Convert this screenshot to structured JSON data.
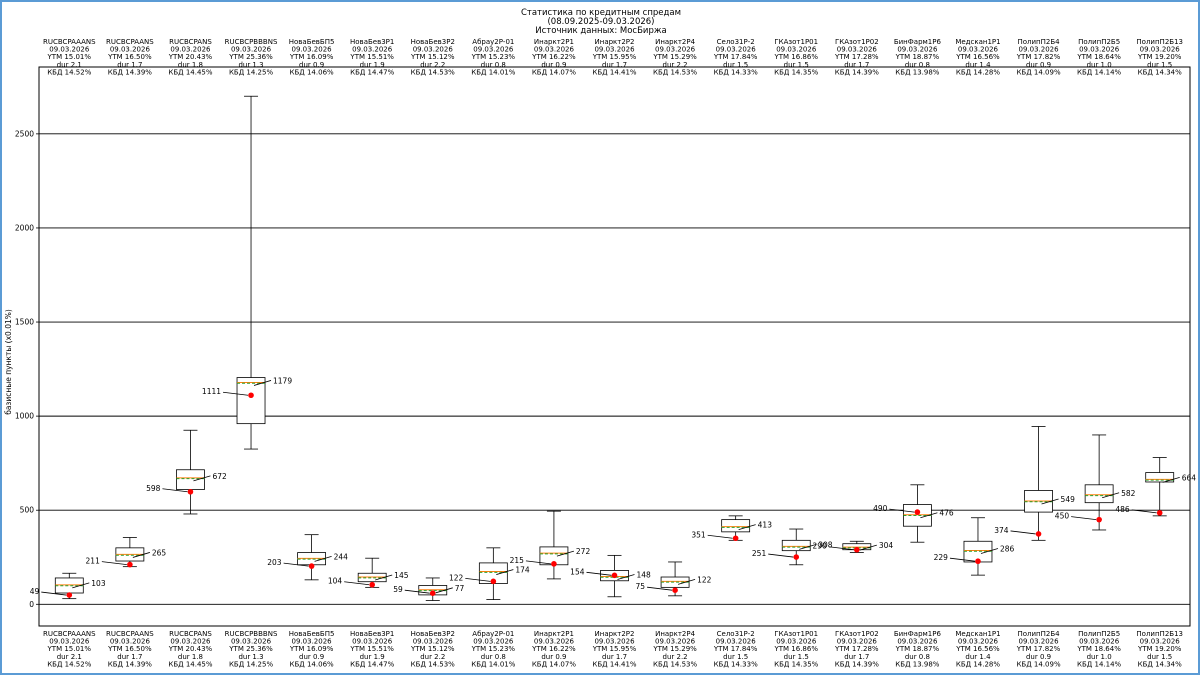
{
  "chart_data": {
    "type": "box",
    "title_lines": [
      "Статистика по кредитным спредам",
      "(08.09.2025-09.03.2026)",
      "Источник данных: МосБиржа"
    ],
    "ylabel": "базисные пункты (x0.01%)",
    "ylim": [
      -110,
      2850
    ],
    "yticks": [
      0,
      500,
      1000,
      1500,
      2000,
      2500
    ],
    "grid": "horizontal",
    "series": [
      {
        "name": "RUCBCPAAANS",
        "date": "09.03.2026",
        "ytm": "YTM 15.01%",
        "dur": "dur 2.1",
        "kbd": "КБД 14.52%",
        "whisker_low": 30,
        "q1": 60,
        "median": 103,
        "q3": 140,
        "whisker_high": 165,
        "mean": 103,
        "current": 49,
        "current_label": "49",
        "mean_label": "103"
      },
      {
        "name": "RUCBCPAANS",
        "date": "09.03.2026",
        "ytm": "YTM 16.50%",
        "dur": "dur 1.7",
        "kbd": "КБД 14.39%",
        "whisker_low": 200,
        "q1": 230,
        "median": 265,
        "q3": 300,
        "whisker_high": 355,
        "mean": 265,
        "current": 211,
        "current_label": "211",
        "mean_label": "265"
      },
      {
        "name": "RUCBCPANS",
        "date": "09.03.2026",
        "ytm": "YTM 20.43%",
        "dur": "dur 1.8",
        "kbd": "КБД 14.45%",
        "whisker_low": 480,
        "q1": 610,
        "median": 672,
        "q3": 715,
        "whisker_high": 925,
        "mean": 672,
        "current": 598,
        "current_label": "598",
        "mean_label": "672"
      },
      {
        "name": "RUCBCPBBBNS",
        "date": "09.03.2026",
        "ytm": "YTM 25.36%",
        "dur": "dur 1.3",
        "kbd": "КБД 14.25%",
        "whisker_low": 825,
        "q1": 960,
        "median": 1179,
        "q3": 1205,
        "whisker_high": 2700,
        "mean": 1179,
        "current": 1111,
        "current_label": "1111",
        "mean_label": "1179"
      },
      {
        "name": "НоваБевБП5",
        "date": "09.03.2026",
        "ytm": "YTM 16.09%",
        "dur": "dur 0.9",
        "kbd": "КБД 14.06%",
        "whisker_low": 130,
        "q1": 210,
        "median": 244,
        "q3": 275,
        "whisker_high": 370,
        "mean": 244,
        "current": 203,
        "current_label": "203",
        "mean_label": "244"
      },
      {
        "name": "НоваБев3Р1",
        "date": "09.03.2026",
        "ytm": "YTM 15.51%",
        "dur": "dur 1.9",
        "kbd": "КБД 14.47%",
        "whisker_low": 90,
        "q1": 120,
        "median": 145,
        "q3": 165,
        "whisker_high": 245,
        "mean": 145,
        "current": 104,
        "current_label": "104",
        "mean_label": "145"
      },
      {
        "name": "НоваБев3Р2",
        "date": "09.03.2026",
        "ytm": "YTM 15.12%",
        "dur": "dur 2.2",
        "kbd": "КБД 14.53%",
        "whisker_low": 20,
        "q1": 50,
        "median": 77,
        "q3": 100,
        "whisker_high": 140,
        "mean": 77,
        "current": 59,
        "current_label": "59",
        "mean_label": "77"
      },
      {
        "name": "Абрау2Р-01",
        "date": "09.03.2026",
        "ytm": "YTM 15.23%",
        "dur": "dur 0.8",
        "kbd": "КБД 14.01%",
        "whisker_low": 25,
        "q1": 110,
        "median": 174,
        "q3": 220,
        "whisker_high": 300,
        "mean": 174,
        "current": 122,
        "current_label": "122",
        "mean_label": "174"
      },
      {
        "name": "Инаркт2Р1",
        "date": "09.03.2026",
        "ytm": "YTM 16.22%",
        "dur": "dur 0.9",
        "kbd": "КБД 14.07%",
        "whisker_low": 135,
        "q1": 210,
        "median": 272,
        "q3": 305,
        "whisker_high": 495,
        "mean": 272,
        "current": 215,
        "current_label": "215",
        "mean_label": "272"
      },
      {
        "name": "Инаркт2Р2",
        "date": "09.03.2026",
        "ytm": "YTM 15.95%",
        "dur": "dur 1.7",
        "kbd": "КБД 14.41%",
        "whisker_low": 40,
        "q1": 125,
        "median": 148,
        "q3": 180,
        "whisker_high": 260,
        "mean": 148,
        "current": 154,
        "current_label": "154",
        "mean_label": "148"
      },
      {
        "name": "Инаркт2Р4",
        "date": "09.03.2026",
        "ytm": "YTM 15.29%",
        "dur": "dur 2.2",
        "kbd": "КБД 14.53%",
        "whisker_low": 45,
        "q1": 90,
        "median": 122,
        "q3": 145,
        "whisker_high": 225,
        "mean": 122,
        "current": 75,
        "current_label": "75",
        "mean_label": "122"
      },
      {
        "name": "Село31Р-2",
        "date": "09.03.2026",
        "ytm": "YTM 17.84%",
        "dur": "dur 1.5",
        "kbd": "КБД 14.33%",
        "whisker_low": 340,
        "q1": 385,
        "median": 413,
        "q3": 450,
        "whisker_high": 470,
        "mean": 413,
        "current": 351,
        "current_label": "351",
        "mean_label": "413"
      },
      {
        "name": "ГКАзот1Р01",
        "date": "09.03.2026",
        "ytm": "YTM 16.86%",
        "dur": "dur 1.5",
        "kbd": "КБД 14.35%",
        "whisker_low": 210,
        "q1": 285,
        "median": 308,
        "q3": 340,
        "whisker_high": 400,
        "mean": 308,
        "current": 251,
        "current_label": "251",
        "mean_label": "308"
      },
      {
        "name": "ГКАзот1Р02",
        "date": "09.03.2026",
        "ytm": "YTM 17.28%",
        "dur": "dur 1.7",
        "kbd": "КБД 14.39%",
        "whisker_low": 275,
        "q1": 290,
        "median": 304,
        "q3": 322,
        "whisker_high": 335,
        "mean": 304,
        "current": 290,
        "current_label": "290",
        "mean_label": "304"
      },
      {
        "name": "БинФарм1Р6",
        "date": "09.03.2026",
        "ytm": "YTM 18.87%",
        "dur": "dur 0.8",
        "kbd": "КБД 13.98%",
        "whisker_low": 330,
        "q1": 415,
        "median": 476,
        "q3": 530,
        "whisker_high": 635,
        "mean": 476,
        "current": 490,
        "current_label": "490",
        "mean_label": "476"
      },
      {
        "name": "Медскан1Р1",
        "date": "09.03.2026",
        "ytm": "YTM 16.56%",
        "dur": "dur 1.4",
        "kbd": "КБД 14.28%",
        "whisker_low": 155,
        "q1": 225,
        "median": 286,
        "q3": 335,
        "whisker_high": 460,
        "mean": 286,
        "current": 229,
        "current_label": "229",
        "mean_label": "286"
      },
      {
        "name": "ПолипП2Б4",
        "date": "09.03.2026",
        "ytm": "YTM 17.82%",
        "dur": "dur 0.9",
        "kbd": "КБД 14.09%",
        "whisker_low": 340,
        "q1": 490,
        "median": 549,
        "q3": 605,
        "whisker_high": 945,
        "mean": 549,
        "current": 374,
        "current_label": "374",
        "mean_label": "549"
      },
      {
        "name": "ПолипП2Б5",
        "date": "09.03.2026",
        "ytm": "YTM 18.64%",
        "dur": "dur 1.0",
        "kbd": "КБД 14.14%",
        "whisker_low": 395,
        "q1": 540,
        "median": 582,
        "q3": 635,
        "whisker_high": 900,
        "mean": 582,
        "current": 450,
        "current_label": "450",
        "mean_label": "582"
      },
      {
        "name": "ПолипП2Б13",
        "date": "09.03.2026",
        "ytm": "YTM 19.20%",
        "dur": "dur 1.5",
        "kbd": "КБД 14.34%",
        "whisker_low": 470,
        "q1": 650,
        "median": 664,
        "q3": 700,
        "whisker_high": 780,
        "mean": 664,
        "current": 486,
        "current_label": "486",
        "mean_label": "664"
      }
    ],
    "colors": {
      "box": "#000000",
      "median": "#ff7f0e",
      "mean": "#2ca02c",
      "current": "#ff0000",
      "frame": "#5b9bd5"
    }
  }
}
